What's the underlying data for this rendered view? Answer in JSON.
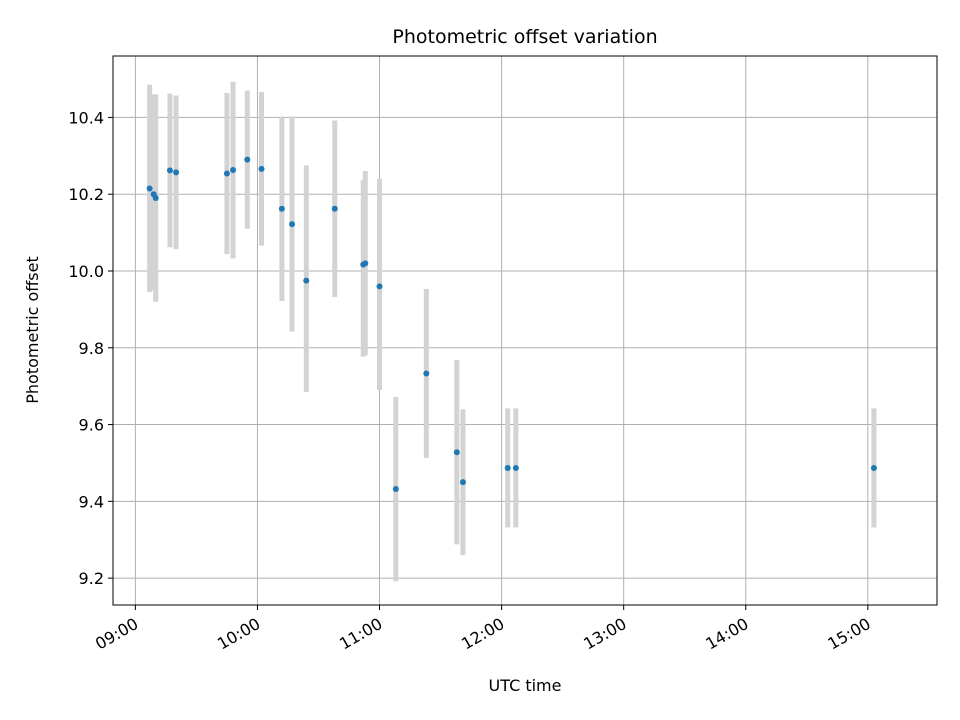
{
  "chart_data": {
    "type": "scatter",
    "title": "Photometric offset variation",
    "xlabel": "UTC time",
    "ylabel": "Photometric offset",
    "x_ticks": [
      "09:00",
      "10:00",
      "11:00",
      "12:00",
      "13:00",
      "14:00",
      "15:00"
    ],
    "y_ticks": [
      "9.2",
      "9.4",
      "9.6",
      "9.8",
      "10.0",
      "10.2",
      "10.4"
    ],
    "xlim": [
      "08:49",
      "15:34"
    ],
    "ylim": [
      9.13,
      10.56
    ],
    "grid": true,
    "colors": {
      "point": "#1f77b4",
      "errorbar": "#d3d3d3",
      "grid": "#b0b0b0"
    },
    "points": [
      {
        "x": "09:07",
        "y": 10.215,
        "yerr_low": 0.27,
        "yerr_high": 0.27
      },
      {
        "x": "09:09",
        "y": 10.2,
        "yerr_low": 0.25,
        "yerr_high": 0.26
      },
      {
        "x": "09:10",
        "y": 10.19,
        "yerr_low": 0.27,
        "yerr_high": 0.27
      },
      {
        "x": "09:17",
        "y": 10.262,
        "yerr_low": 0.2,
        "yerr_high": 0.2
      },
      {
        "x": "09:20",
        "y": 10.257,
        "yerr_low": 0.2,
        "yerr_high": 0.2
      },
      {
        "x": "09:45",
        "y": 10.254,
        "yerr_low": 0.21,
        "yerr_high": 0.21
      },
      {
        "x": "09:48",
        "y": 10.263,
        "yerr_low": 0.23,
        "yerr_high": 0.23
      },
      {
        "x": "09:55",
        "y": 10.29,
        "yerr_low": 0.18,
        "yerr_high": 0.18
      },
      {
        "x": "10:02",
        "y": 10.266,
        "yerr_low": 0.2,
        "yerr_high": 0.2
      },
      {
        "x": "10:12",
        "y": 10.162,
        "yerr_low": 0.24,
        "yerr_high": 0.24
      },
      {
        "x": "10:17",
        "y": 10.122,
        "yerr_low": 0.28,
        "yerr_high": 0.28
      },
      {
        "x": "10:24",
        "y": 9.975,
        "yerr_low": 0.29,
        "yerr_high": 0.3
      },
      {
        "x": "10:38",
        "y": 10.162,
        "yerr_low": 0.23,
        "yerr_high": 0.23
      },
      {
        "x": "10:52",
        "y": 10.017,
        "yerr_low": 0.24,
        "yerr_high": 0.22
      },
      {
        "x": "10:53",
        "y": 10.02,
        "yerr_low": 0.24,
        "yerr_high": 0.24
      },
      {
        "x": "11:00",
        "y": 9.96,
        "yerr_low": 0.27,
        "yerr_high": 0.28
      },
      {
        "x": "11:08",
        "y": 9.432,
        "yerr_low": 0.24,
        "yerr_high": 0.24
      },
      {
        "x": "11:23",
        "y": 9.733,
        "yerr_low": 0.22,
        "yerr_high": 0.22
      },
      {
        "x": "11:38",
        "y": 9.528,
        "yerr_low": 0.24,
        "yerr_high": 0.24
      },
      {
        "x": "11:41",
        "y": 9.45,
        "yerr_low": 0.19,
        "yerr_high": 0.19
      },
      {
        "x": "12:03",
        "y": 9.487,
        "yerr_low": 0.155,
        "yerr_high": 0.155
      },
      {
        "x": "12:07",
        "y": 9.487,
        "yerr_low": 0.155,
        "yerr_high": 0.155
      },
      {
        "x": "15:03",
        "y": 9.487,
        "yerr_low": 0.155,
        "yerr_high": 0.155
      }
    ]
  }
}
